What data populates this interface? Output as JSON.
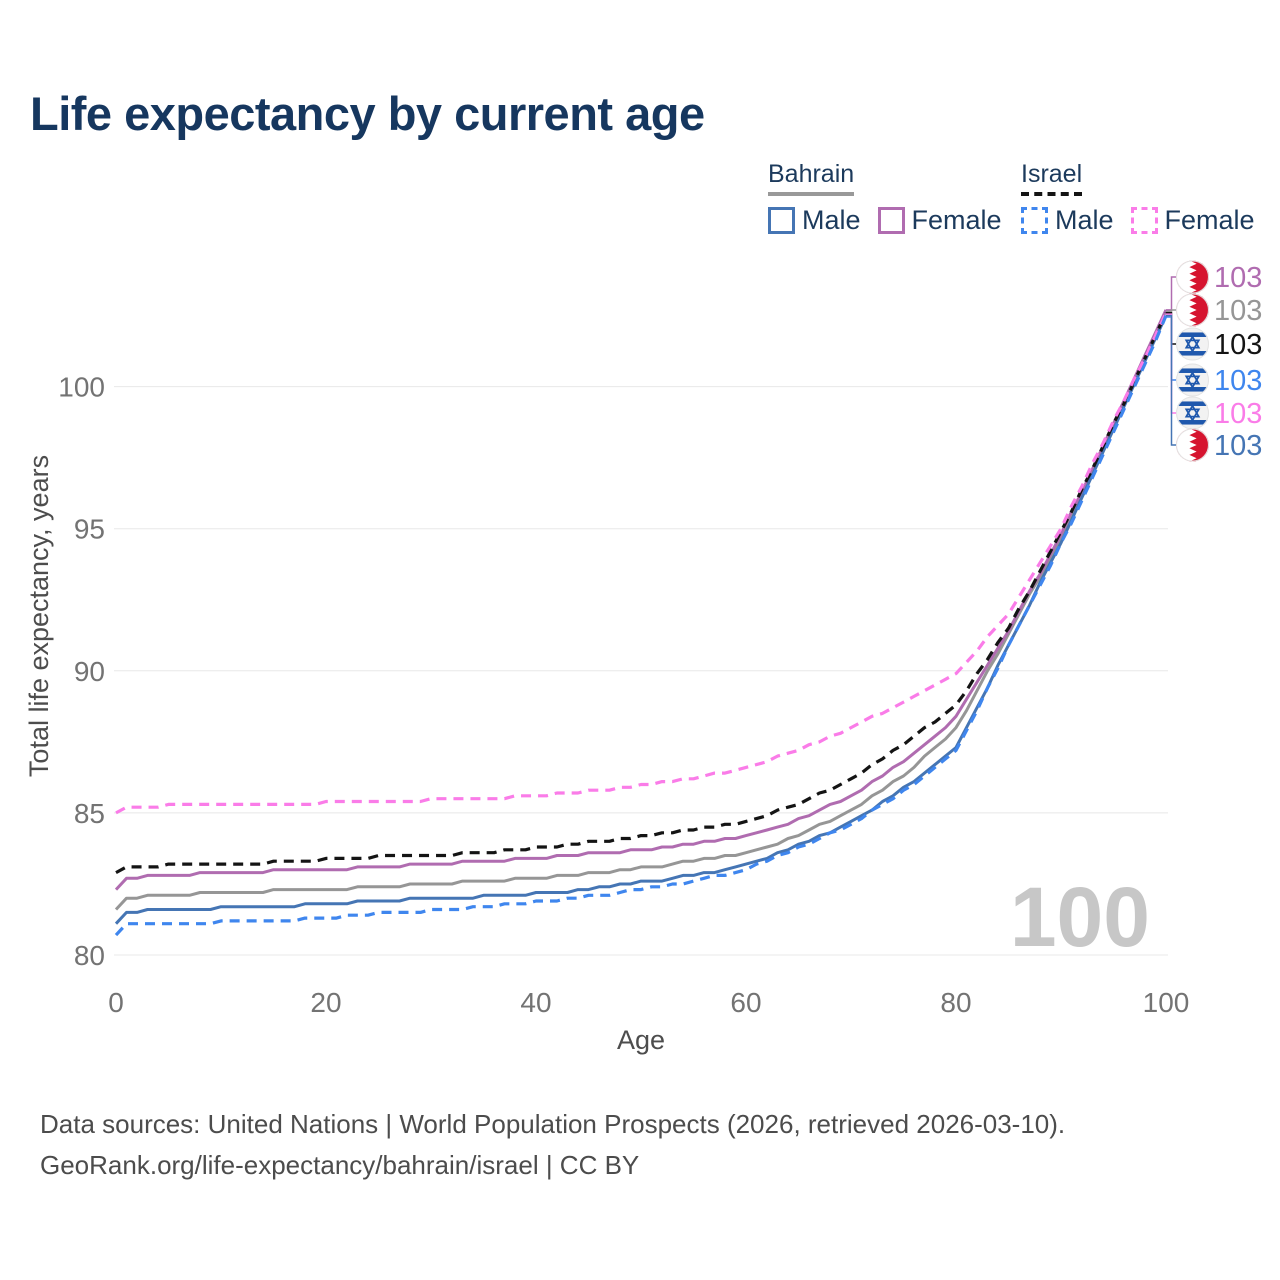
{
  "title": "Life expectancy by current age",
  "watermark": "100",
  "legend": {
    "groups": [
      {
        "country": "Bahrain",
        "underline_style": "solid",
        "underline_color": "#999999",
        "items": [
          {
            "label": "Male",
            "color": "#4575b4",
            "dash": false
          },
          {
            "label": "Female",
            "color": "#b06cb0",
            "dash": false
          }
        ]
      },
      {
        "country": "Israel",
        "underline_style": "dashed",
        "underline_color": "#141414",
        "items": [
          {
            "label": "Male",
            "color": "#3f86ee",
            "dash": true
          },
          {
            "label": "Female",
            "color": "#fa7ce8",
            "dash": true
          }
        ]
      }
    ]
  },
  "footer": {
    "line1": "Data sources: United Nations | World Population Prospects (2026, retrieved 2026-03-10).",
    "line2": "GeoRank.org/life-expectancy/bahrain/israel | CC BY"
  },
  "chart_data": {
    "type": "line",
    "title": "Life expectancy by current age",
    "xlabel": "Age",
    "ylabel": "Total life expectancy, years",
    "x_tick_labels": [
      "0",
      "20",
      "40",
      "60",
      "80",
      "100"
    ],
    "x_tick_values": [
      0,
      20,
      40,
      60,
      80,
      100
    ],
    "y_tick_labels": [
      "80",
      "85",
      "90",
      "95",
      "100"
    ],
    "y_tick_values": [
      80,
      85,
      90,
      95,
      100
    ],
    "xlim": [
      0,
      100
    ],
    "ylim": [
      80,
      103.6
    ],
    "grid": "horizontal",
    "ages": [
      0,
      1,
      5,
      10,
      15,
      20,
      25,
      30,
      35,
      40,
      45,
      50,
      55,
      60,
      65,
      70,
      75,
      80,
      85,
      90,
      95,
      100
    ],
    "series": [
      {
        "id": "bahrain_all",
        "country": "Bahrain",
        "sex": "Both",
        "color": "#969696",
        "dash": false,
        "values": [
          81.6,
          82.0,
          82.1,
          82.2,
          82.25,
          82.3,
          82.4,
          82.5,
          82.6,
          82.7,
          82.85,
          83.05,
          83.3,
          83.55,
          84.2,
          85.1,
          86.3,
          87.95,
          91.3,
          94.7,
          98.6,
          102.65
        ],
        "end_label": "103"
      },
      {
        "id": "bahrain_female",
        "country": "Bahrain",
        "sex": "Female",
        "color": "#b06cb0",
        "dash": false,
        "values": [
          82.3,
          82.7,
          82.8,
          82.9,
          82.95,
          83.0,
          83.1,
          83.2,
          83.3,
          83.4,
          83.55,
          83.7,
          83.9,
          84.15,
          84.75,
          85.6,
          86.8,
          88.35,
          91.4,
          94.8,
          98.65,
          102.7
        ],
        "end_label": "103"
      },
      {
        "id": "bahrain_male",
        "country": "Bahrain",
        "sex": "Male",
        "color": "#4575b4",
        "dash": false,
        "values": [
          81.1,
          81.5,
          81.6,
          81.65,
          81.7,
          81.8,
          81.9,
          82.0,
          82.05,
          82.15,
          82.3,
          82.55,
          82.8,
          83.15,
          83.85,
          84.65,
          85.85,
          87.25,
          90.9,
          94.5,
          98.45,
          102.5
        ],
        "end_label": "103"
      },
      {
        "id": "israel_all",
        "country": "Israel",
        "sex": "Both",
        "color": "#141414",
        "dash": true,
        "values": [
          82.85,
          83.05,
          83.15,
          83.2,
          83.25,
          83.35,
          83.45,
          83.5,
          83.6,
          83.75,
          83.95,
          84.15,
          84.4,
          84.7,
          85.3,
          86.2,
          87.4,
          88.8,
          91.5,
          94.85,
          98.65,
          102.6
        ],
        "end_label": "103"
      },
      {
        "id": "israel_female",
        "country": "Israel",
        "sex": "Female",
        "color": "#fa7ce8",
        "dash": true,
        "values": [
          85.0,
          85.2,
          85.25,
          85.3,
          85.3,
          85.35,
          85.4,
          85.45,
          85.5,
          85.6,
          85.75,
          85.95,
          86.2,
          86.6,
          87.2,
          88.0,
          88.9,
          89.9,
          92.0,
          95.0,
          98.75,
          102.55
        ],
        "end_label": "103"
      },
      {
        "id": "israel_male",
        "country": "Israel",
        "sex": "Male",
        "color": "#3f86ee",
        "dash": true,
        "values": [
          80.65,
          81.05,
          81.1,
          81.15,
          81.2,
          81.3,
          81.45,
          81.55,
          81.7,
          81.85,
          82.05,
          82.3,
          82.6,
          83.0,
          83.75,
          84.6,
          85.75,
          87.15,
          90.85,
          94.45,
          98.4,
          102.45
        ],
        "end_label": "103"
      }
    ]
  },
  "end_labels": [
    {
      "series": "bahrain_female",
      "flag": "bahrain",
      "value": "103"
    },
    {
      "series": "bahrain_all",
      "flag": "bahrain",
      "value": "103"
    },
    {
      "series": "israel_all",
      "flag": "israel",
      "value": "103"
    },
    {
      "series": "israel_male",
      "flag": "israel",
      "value": "103"
    },
    {
      "series": "israel_female",
      "flag": "israel",
      "value": "103"
    },
    {
      "series": "bahrain_male",
      "flag": "bahrain",
      "value": "103"
    }
  ]
}
